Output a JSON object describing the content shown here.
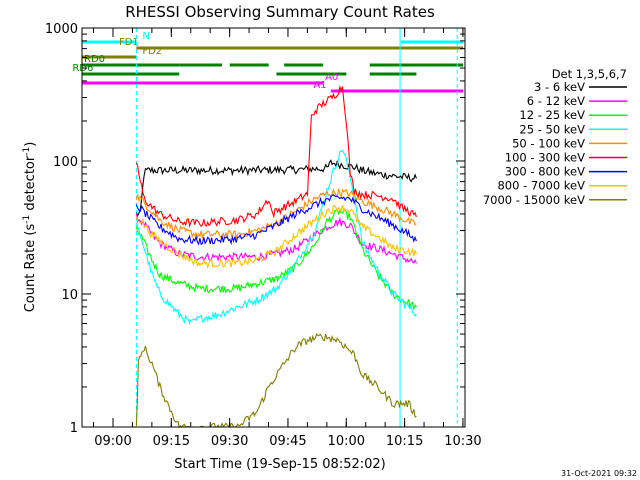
{
  "chart_data": {
    "type": "line",
    "title": "RHESSI Observing Summary Count Rates",
    "xlabel": "Start Time (19-Sep-15 08:52:02)",
    "ylabel_parts": [
      "Count Rate (s",
      "-1",
      " detector",
      "-1",
      ")"
    ],
    "yscale": "log",
    "ylim": [
      1,
      1000
    ],
    "xlim_minutes": [
      0,
      98.5
    ],
    "x_tick_labels": [
      "09:00",
      "09:15",
      "09:30",
      "09:45",
      "10:00",
      "10:15",
      "10:30"
    ],
    "x_tick_minutes": [
      7.97,
      22.97,
      37.97,
      52.97,
      67.97,
      82.97,
      97.97
    ],
    "y_tick_labels": [
      "1",
      "10",
      "100",
      "1000"
    ],
    "y_tick_values": [
      1,
      10,
      100,
      1000
    ],
    "legend_title": "Det 1,3,5,6,7",
    "series": [
      {
        "name": "3 - 6 keV",
        "color": "#000000",
        "points": [
          [
            14,
            40
          ],
          [
            15,
            40
          ],
          [
            16,
            82
          ],
          [
            17,
            85
          ],
          [
            25,
            85
          ],
          [
            40,
            85
          ],
          [
            55,
            86
          ],
          [
            63,
            88
          ],
          [
            64,
            97
          ],
          [
            66,
            95
          ],
          [
            68,
            92
          ],
          [
            70,
            90
          ],
          [
            72,
            85
          ],
          [
            76,
            80
          ],
          [
            82,
            76
          ],
          [
            86,
            74
          ]
        ]
      },
      {
        "name": "6 - 12 keV",
        "color": "#ff00ff",
        "points": [
          [
            14,
            38
          ],
          [
            15,
            36
          ],
          [
            18,
            28
          ],
          [
            20,
            24
          ],
          [
            25,
            20
          ],
          [
            30,
            19
          ],
          [
            40,
            19
          ],
          [
            45,
            19
          ],
          [
            50,
            20
          ],
          [
            55,
            22
          ],
          [
            60,
            28
          ],
          [
            63,
            32
          ],
          [
            66,
            35
          ],
          [
            69,
            33
          ],
          [
            72,
            24
          ],
          [
            76,
            22
          ],
          [
            80,
            20
          ],
          [
            84,
            18
          ],
          [
            86,
            17
          ]
        ]
      },
      {
        "name": "12 - 25 keV",
        "color": "#00ff00",
        "points": [
          [
            14,
            30
          ],
          [
            15,
            28
          ],
          [
            18,
            18
          ],
          [
            20,
            14
          ],
          [
            25,
            12
          ],
          [
            30,
            11
          ],
          [
            40,
            11
          ],
          [
            45,
            12
          ],
          [
            50,
            13
          ],
          [
            55,
            16
          ],
          [
            60,
            24
          ],
          [
            63,
            35
          ],
          [
            66,
            42
          ],
          [
            69,
            38
          ],
          [
            72,
            22
          ],
          [
            76,
            14
          ],
          [
            80,
            10
          ],
          [
            84,
            8.5
          ],
          [
            86,
            8
          ]
        ]
      },
      {
        "name": "25 - 50 keV",
        "color": "#00ffff",
        "points": [
          [
            14,
            32
          ],
          [
            15,
            28
          ],
          [
            18,
            14
          ],
          [
            20,
            10
          ],
          [
            25,
            7
          ],
          [
            28,
            6
          ],
          [
            30,
            6.5
          ],
          [
            35,
            7
          ],
          [
            40,
            8
          ],
          [
            45,
            9
          ],
          [
            50,
            11
          ],
          [
            55,
            17
          ],
          [
            60,
            30
          ],
          [
            63,
            60
          ],
          [
            65,
            90
          ],
          [
            67,
            125
          ],
          [
            68,
            100
          ],
          [
            70,
            55
          ],
          [
            72,
            25
          ],
          [
            76,
            15
          ],
          [
            80,
            10
          ],
          [
            84,
            8
          ],
          [
            86,
            7
          ]
        ]
      },
      {
        "name": "50 - 100 keV",
        "color": "#ff8c00",
        "points": [
          [
            14,
            55
          ],
          [
            15,
            52
          ],
          [
            18,
            42
          ],
          [
            20,
            36
          ],
          [
            25,
            30
          ],
          [
            30,
            28
          ],
          [
            40,
            28
          ],
          [
            45,
            30
          ],
          [
            50,
            34
          ],
          [
            55,
            42
          ],
          [
            60,
            52
          ],
          [
            63,
            57
          ],
          [
            66,
            58
          ],
          [
            69,
            57
          ],
          [
            72,
            50
          ],
          [
            76,
            45
          ],
          [
            80,
            40
          ],
          [
            84,
            35
          ],
          [
            86,
            33
          ]
        ]
      },
      {
        "name": "100 - 300 keV",
        "color": "#ff0000",
        "points": [
          [
            14,
            100
          ],
          [
            15,
            70
          ],
          [
            16,
            52
          ],
          [
            18,
            45
          ],
          [
            20,
            40
          ],
          [
            25,
            35
          ],
          [
            30,
            34
          ],
          [
            40,
            36
          ],
          [
            45,
            40
          ],
          [
            48,
            52
          ],
          [
            49,
            40
          ],
          [
            50,
            42
          ],
          [
            55,
            50
          ],
          [
            58,
            57
          ],
          [
            59,
            215
          ],
          [
            60,
            240
          ],
          [
            62,
            270
          ],
          [
            65,
            310
          ],
          [
            66,
            340
          ],
          [
            67,
            360
          ],
          [
            68,
            200
          ],
          [
            69,
            80
          ],
          [
            70,
            60
          ],
          [
            72,
            56
          ],
          [
            76,
            55
          ],
          [
            80,
            52
          ],
          [
            82,
            45
          ],
          [
            84,
            42
          ],
          [
            86,
            38
          ]
        ]
      },
      {
        "name": "300 - 800 keV",
        "color": "#0000ff",
        "points": [
          [
            14,
            45
          ],
          [
            15,
            44
          ],
          [
            18,
            36
          ],
          [
            20,
            32
          ],
          [
            25,
            26
          ],
          [
            30,
            25
          ],
          [
            40,
            26
          ],
          [
            45,
            28
          ],
          [
            50,
            33
          ],
          [
            55,
            40
          ],
          [
            60,
            47
          ],
          [
            63,
            51
          ],
          [
            66,
            53
          ],
          [
            69,
            52
          ],
          [
            72,
            44
          ],
          [
            76,
            38
          ],
          [
            80,
            33
          ],
          [
            84,
            28
          ],
          [
            86,
            25
          ]
        ]
      },
      {
        "name": "800 - 7000 keV",
        "color": "#ffc000",
        "points": [
          [
            14,
            38
          ],
          [
            15,
            36
          ],
          [
            18,
            28
          ],
          [
            20,
            25
          ],
          [
            25,
            20
          ],
          [
            30,
            17
          ],
          [
            40,
            17
          ],
          [
            45,
            18
          ],
          [
            50,
            21
          ],
          [
            55,
            28
          ],
          [
            60,
            36
          ],
          [
            63,
            42
          ],
          [
            66,
            45
          ],
          [
            69,
            43
          ],
          [
            72,
            32
          ],
          [
            76,
            27
          ],
          [
            80,
            22
          ],
          [
            84,
            21
          ],
          [
            86,
            20
          ]
        ]
      },
      {
        "name": "7000 - 15000 keV",
        "color": "#808000",
        "points": [
          [
            14,
            1
          ],
          [
            14.5,
            3
          ],
          [
            16,
            4
          ],
          [
            18,
            3
          ],
          [
            20,
            2
          ],
          [
            22,
            1.5
          ],
          [
            25,
            1
          ],
          [
            40,
            1
          ],
          [
            45,
            1.3
          ],
          [
            48,
            2
          ],
          [
            52,
            3
          ],
          [
            55,
            4
          ],
          [
            58,
            4.5
          ],
          [
            62,
            4.8
          ],
          [
            66,
            4.5
          ],
          [
            70,
            3.5
          ],
          [
            72,
            2.5
          ],
          [
            76,
            2
          ],
          [
            80,
            1.5
          ],
          [
            84,
            1.5
          ],
          [
            86,
            1.2
          ]
        ]
      }
    ],
    "state_bars": [
      {
        "label": "N",
        "color": "#00ffff",
        "label_color": "#00ffff",
        "y_pixel_band": "top",
        "segments": [
          [
            0,
            14
          ],
          [
            82,
            98
          ]
        ],
        "label_at": 15
      },
      {
        "label": "FD1",
        "color": "#808000",
        "label_color": "#808000",
        "segments": [
          [
            14,
            98
          ]
        ],
        "label_at": 9
      },
      {
        "label": "FD2",
        "color": "#808000",
        "label_color": "#808000",
        "segments": [
          [
            0,
            14
          ]
        ],
        "label_at": 15
      },
      {
        "label": "RD0",
        "color": "#008000",
        "label_color": "#008000",
        "segments": [
          [
            0,
            14
          ],
          [
            14,
            25
          ],
          [
            25,
            36
          ],
          [
            38,
            48
          ],
          [
            52,
            62
          ],
          [
            74,
            98
          ]
        ],
        "label_at": 0
      },
      {
        "label": "RD6",
        "color": "#008000",
        "label_color": "#008000",
        "segments": [
          [
            0,
            25
          ],
          [
            50,
            68
          ],
          [
            74,
            86
          ]
        ],
        "label_at": -3
      },
      {
        "label": "A0",
        "color": "#ff00ff",
        "label_color": "#ff00ff",
        "segments": [
          [
            0,
            62
          ]
        ],
        "label_at": 62
      },
      {
        "label": "A1",
        "color": "#ff00ff",
        "label_color": "#ff00ff",
        "segments": [
          [
            64,
            98
          ]
        ],
        "label_at": 59
      }
    ],
    "vertical_lines": [
      {
        "minutes": 0,
        "color": "#00ffff",
        "style": "solid"
      },
      {
        "minutes": 14,
        "color": "#00ffff",
        "style": "dashed"
      },
      {
        "minutes": 81.8,
        "color": "#00ffff",
        "style": "solid"
      },
      {
        "minutes": 96.5,
        "color": "#00ffff",
        "style": "dashed"
      }
    ]
  },
  "footer": {
    "timestamp": "31-Oct-2021 09:32"
  }
}
